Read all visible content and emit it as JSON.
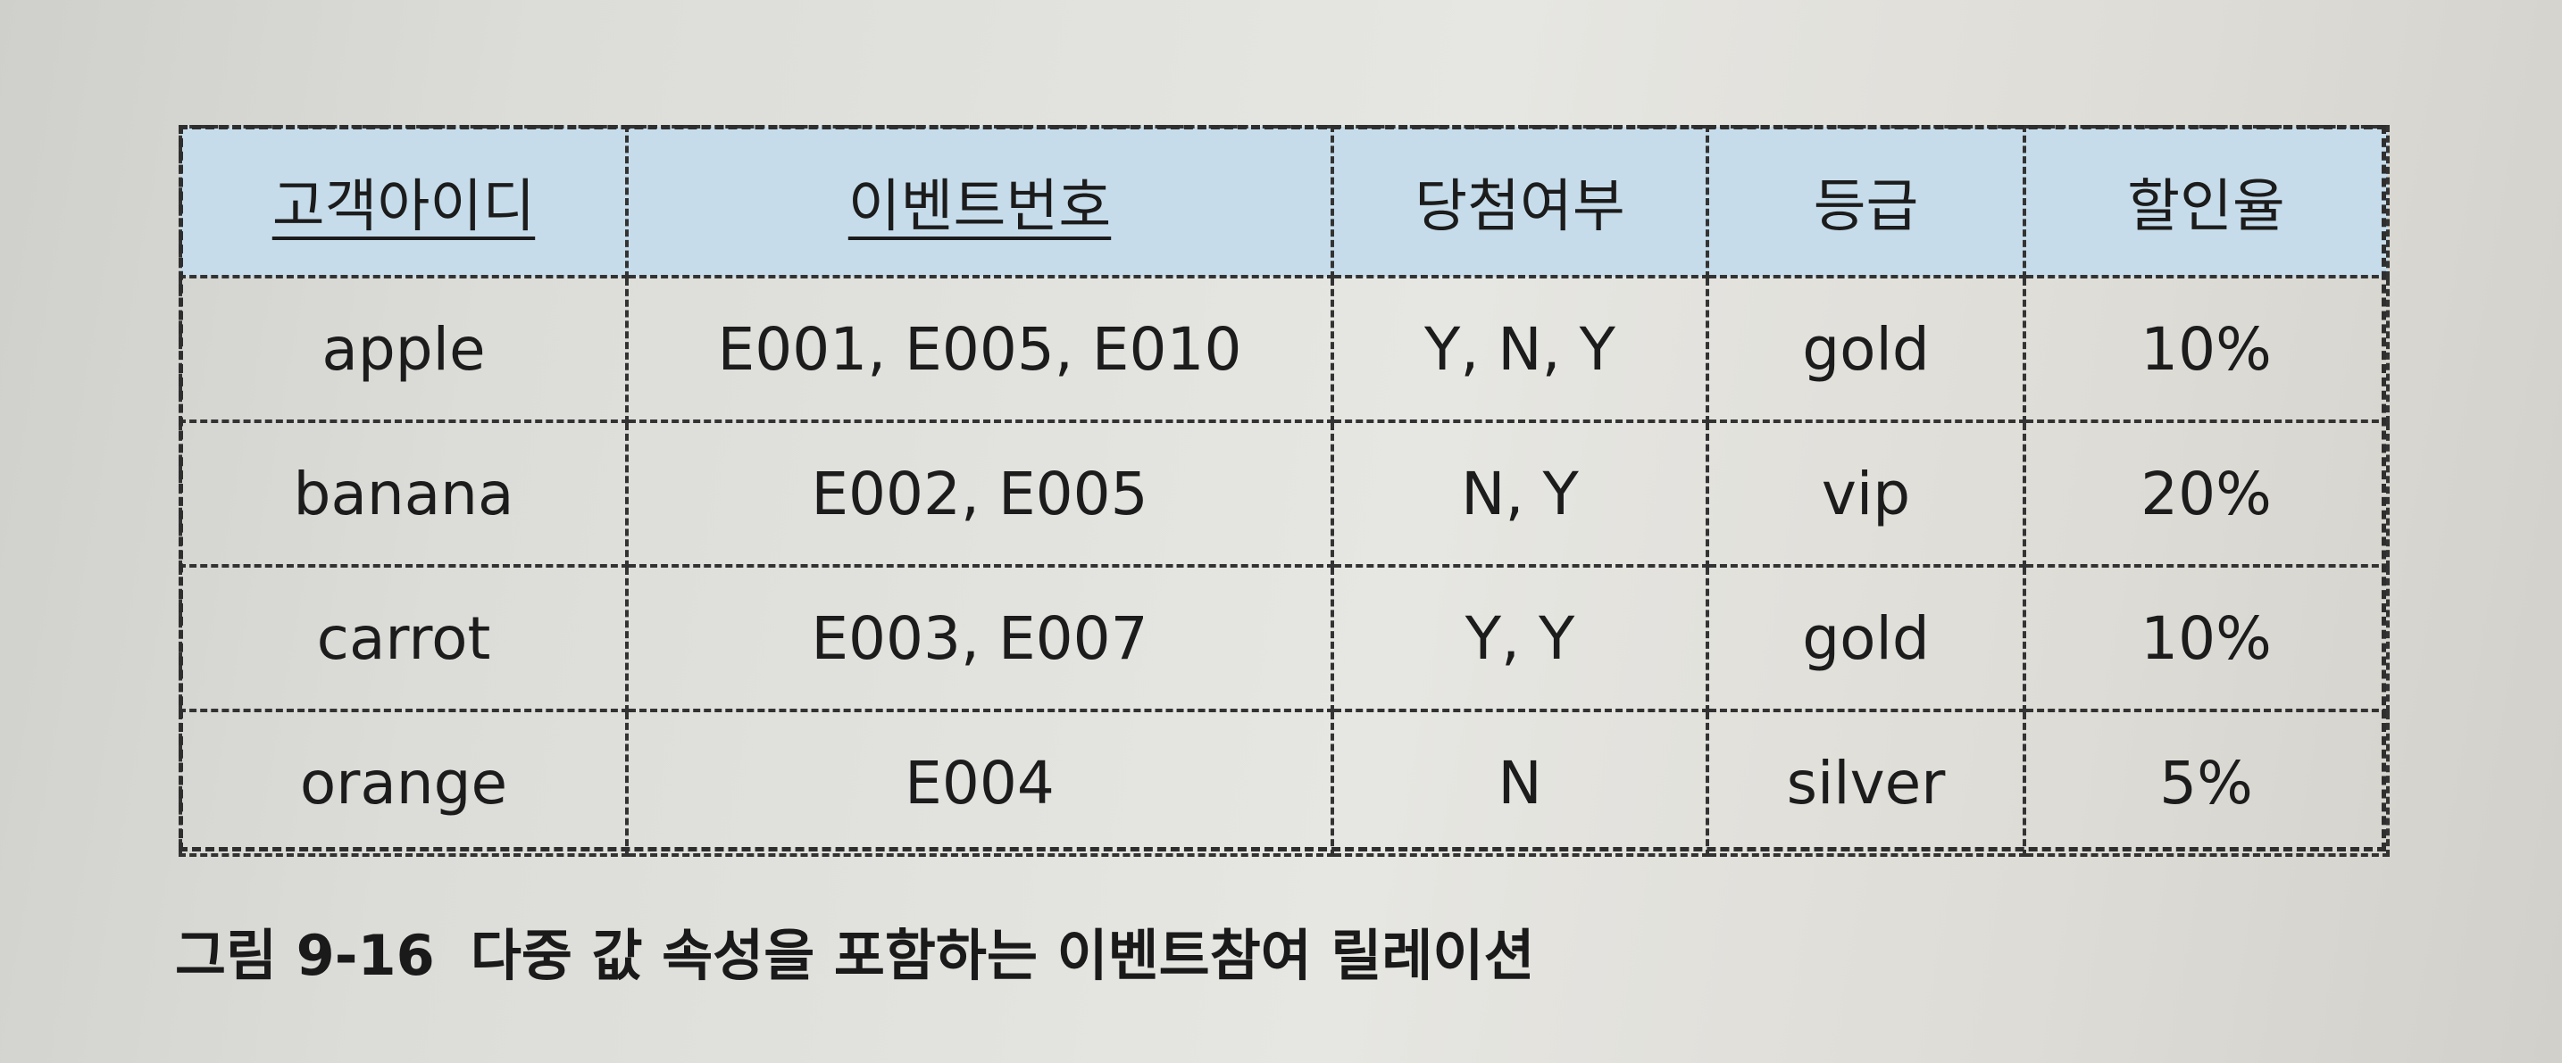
{
  "table": {
    "headers": [
      "고객아이디",
      "이벤트번호",
      "당첨여부",
      "등급",
      "할인율"
    ],
    "rows": [
      [
        "apple",
        "E001, E005, E010",
        "Y, N, Y",
        "gold",
        "10%"
      ],
      [
        "banana",
        "E002, E005",
        "N, Y",
        "vip",
        "20%"
      ],
      [
        "carrot",
        "E003, E007",
        "Y, Y",
        "gold",
        "10%"
      ],
      [
        "orange",
        "E004",
        "N",
        "silver",
        "5%"
      ]
    ],
    "header_color": "#c6dcea"
  },
  "caption": {
    "number": "그림 9-16",
    "text": "다중 값 속성을 포함하는 이벤트참여 릴레이션"
  }
}
